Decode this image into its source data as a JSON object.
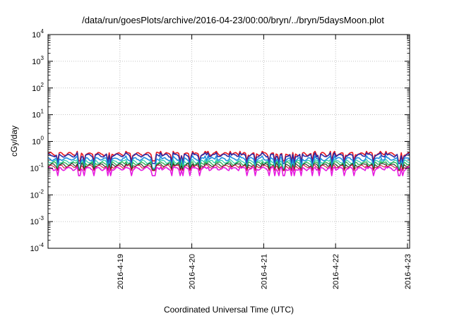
{
  "chart_data": {
    "type": "line",
    "title": "/data/run/goesPlots/archive/2016-04-23/00:00/bryn/../bryn/5daysMoon.plot",
    "xlabel": "Coordinated Universal Time (UTC)",
    "ylabel": "cGy/day",
    "yscale": "log",
    "ylim": [
      0.0001,
      10000
    ],
    "xlim_days": [
      18.0,
      23.03
    ],
    "y_ticks": [
      {
        "base": "10",
        "exp": "-4"
      },
      {
        "base": "10",
        "exp": "-3"
      },
      {
        "base": "10",
        "exp": "-2"
      },
      {
        "base": "10",
        "exp": "-1"
      },
      {
        "base": "10",
        "exp": "0"
      },
      {
        "base": "10",
        "exp": "1"
      },
      {
        "base": "10",
        "exp": "2"
      },
      {
        "base": "10",
        "exp": "3"
      },
      {
        "base": "10",
        "exp": "4"
      }
    ],
    "x_ticks": [
      "2016-4-19",
      "2016-4-20",
      "2016-4-21",
      "2016-4-22",
      "2016-4-23"
    ],
    "grid": true,
    "series": [
      {
        "color": "#e8171f",
        "level": 0.34,
        "dip": 0.55,
        "spike": 1.25,
        "width": 1.6
      },
      {
        "color": "#2a2aa5",
        "level": 0.3,
        "dip": 0.5,
        "spike": 1.25,
        "width": 1.6
      },
      {
        "color": "#1f8fe0",
        "level": 0.22,
        "dip": 0.45,
        "spike": 1.3,
        "width": 1.6
      },
      {
        "color": "#2fd0b0",
        "level": 0.175,
        "dip": 0.5,
        "spike": 1.2,
        "width": 1.3
      },
      {
        "color": "#2ab050",
        "level": 0.15,
        "dip": 0.6,
        "spike": 1.15,
        "width": 1.3
      },
      {
        "color": "#222222",
        "level": 0.13,
        "dip": 0.65,
        "spike": 1.12,
        "width": 1.1
      },
      {
        "color": "#d01a40",
        "level": 0.115,
        "dip": 0.7,
        "spike": 1.1,
        "width": 1.1
      },
      {
        "color": "#e619e0",
        "level": 0.095,
        "dip": 0.55,
        "spike": 1.15,
        "width": 1.6
      }
    ]
  }
}
